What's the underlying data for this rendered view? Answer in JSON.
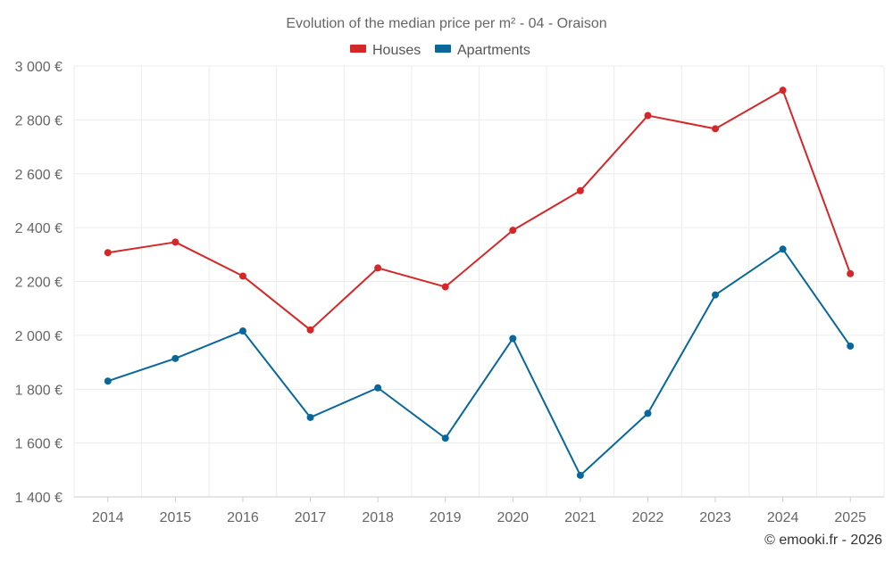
{
  "chart_data": {
    "type": "line",
    "title": "Evolution of the median price per m² - 04 - Oraison",
    "categories": [
      "2014",
      "2015",
      "2016",
      "2017",
      "2018",
      "2019",
      "2020",
      "2021",
      "2022",
      "2023",
      "2024",
      "2025"
    ],
    "series": [
      {
        "name": "Houses",
        "color": "#d62728",
        "values": [
          2307,
          2346,
          2220,
          2020,
          2250,
          2180,
          2390,
          2537,
          2816,
          2767,
          2910,
          2229
        ]
      },
      {
        "name": "Apartments",
        "color": "#08689b",
        "values": [
          1830,
          1914,
          2016,
          1695,
          1805,
          1618,
          1988,
          1480,
          1710,
          2150,
          2320,
          1960
        ]
      }
    ],
    "ylim": [
      1400,
      3000
    ],
    "yticks": [
      1400,
      1600,
      1800,
      2000,
      2200,
      2400,
      2600,
      2800,
      3000
    ],
    "ytick_labels": [
      "1 400 €",
      "1 600 €",
      "1 800 €",
      "2 000 €",
      "2 200 €",
      "2 400 €",
      "2 600 €",
      "2 800 €",
      "3 000 €"
    ],
    "xlabel": "",
    "ylabel": "",
    "grid": true,
    "legend_position": "top-center"
  },
  "credit": "© emooki.fr - 2026"
}
